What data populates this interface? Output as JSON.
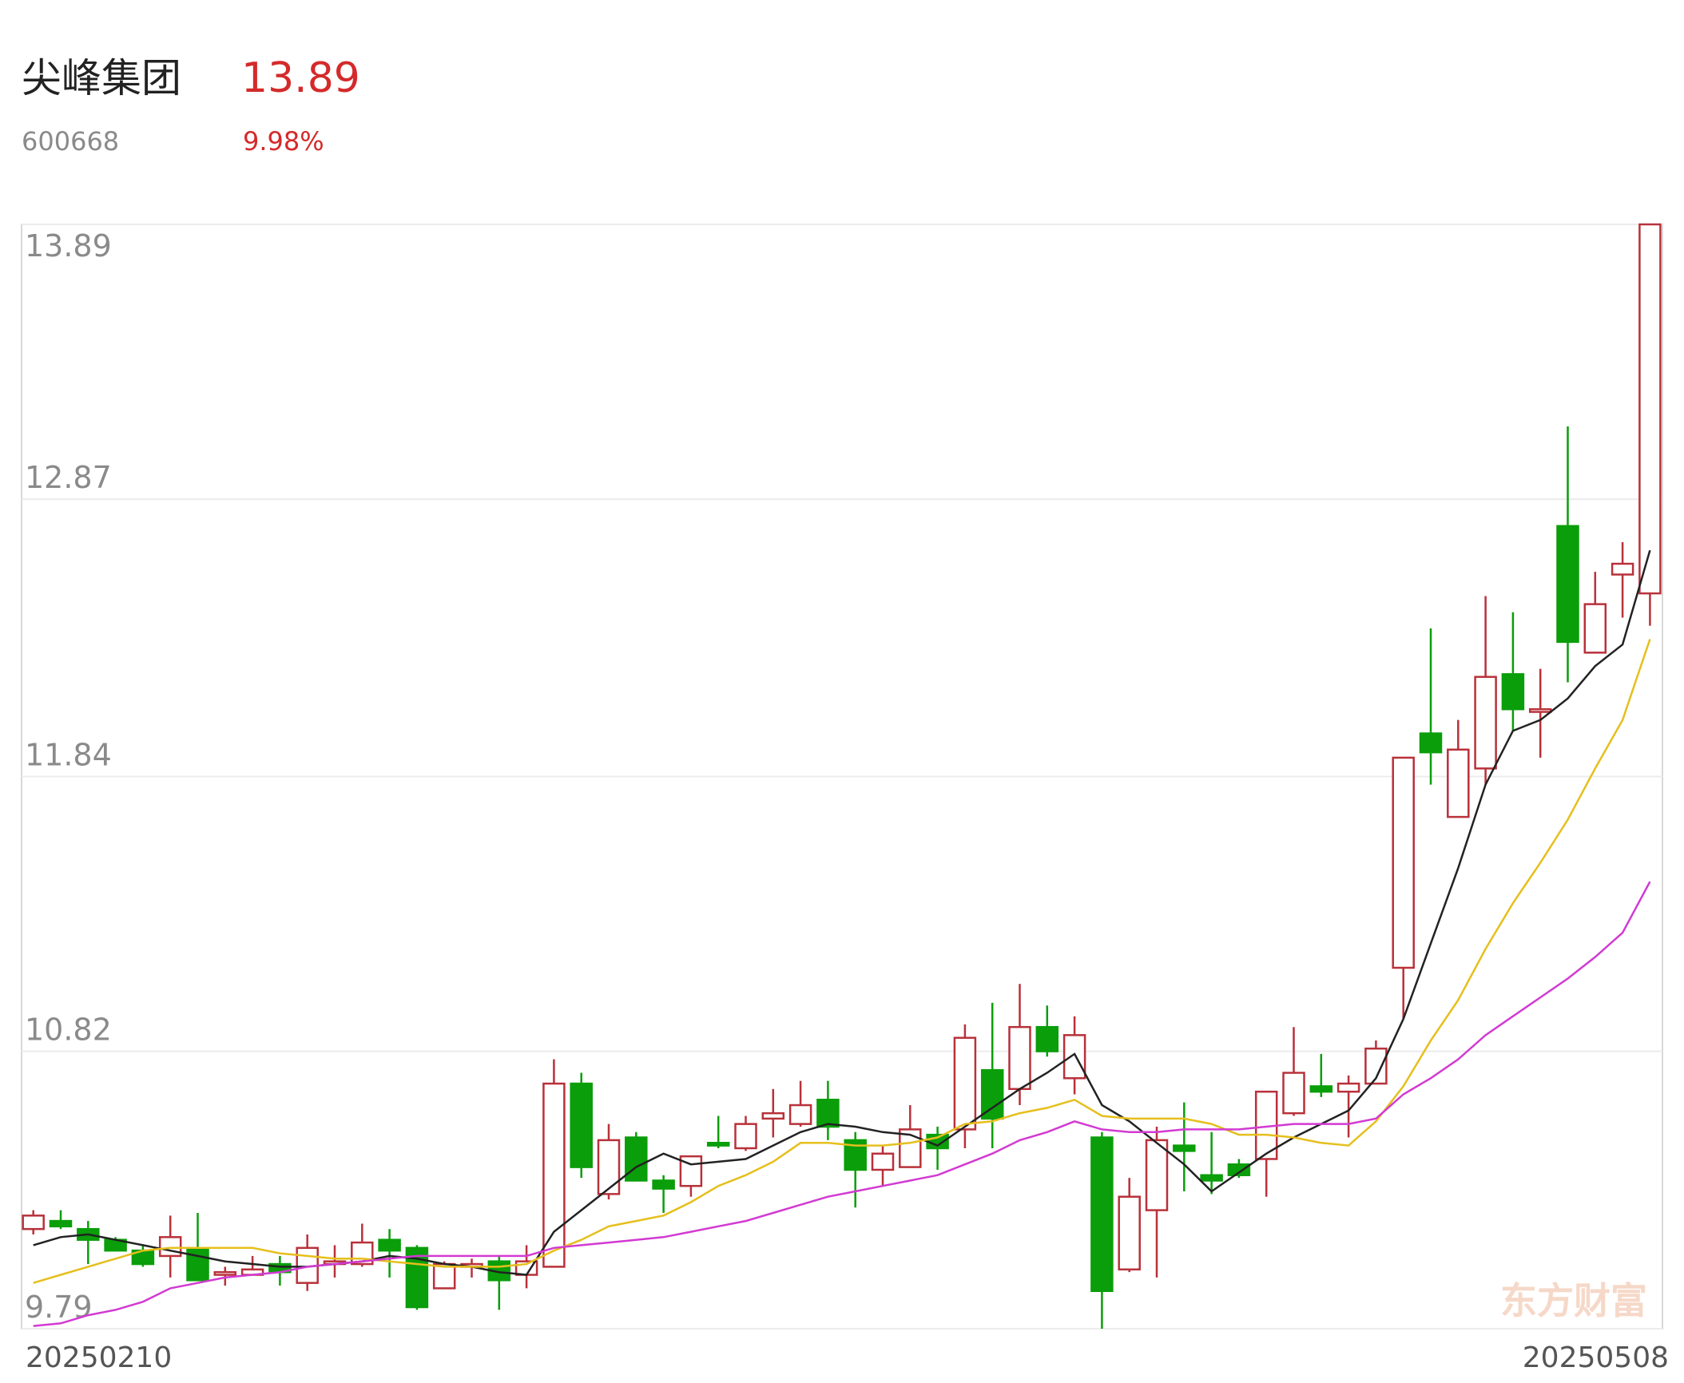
{
  "header": {
    "title": "尖峰集团",
    "price": "13.89",
    "code": "600668",
    "change": "9.98%"
  },
  "chart_data": {
    "type": "candlestick",
    "categories": [
      "20250210",
      null,
      null,
      null,
      null,
      null,
      null,
      null,
      null,
      null,
      null,
      null,
      null,
      null,
      null,
      null,
      null,
      null,
      null,
      null,
      null,
      null,
      null,
      null,
      null,
      null,
      null,
      null,
      null,
      null,
      null,
      null,
      null,
      null,
      null,
      null,
      null,
      null,
      null,
      null,
      null,
      null,
      null,
      null,
      null,
      null,
      null,
      null,
      null,
      null,
      null,
      null,
      null,
      null,
      null,
      null,
      null,
      null,
      null,
      "20250508"
    ],
    "open": [
      10.16,
      10.19,
      10.16,
      10.12,
      10.08,
      10.06,
      10.09,
      9.99,
      9.99,
      10.03,
      9.96,
      10.03,
      10.03,
      10.12,
      10.09,
      9.94,
      10.02,
      10.04,
      9.99,
      10.02,
      10.7,
      10.29,
      10.5,
      10.34,
      10.32,
      10.48,
      10.46,
      10.57,
      10.55,
      10.64,
      10.49,
      10.38,
      10.39,
      10.51,
      10.53,
      10.75,
      10.68,
      10.91,
      10.72,
      10.5,
      10.01,
      10.23,
      10.47,
      10.36,
      10.4,
      10.42,
      10.59,
      10.69,
      10.67,
      10.7,
      11.13,
      12.0,
      11.69,
      11.87,
      12.22,
      12.08,
      12.77,
      12.3,
      12.59,
      12.52
    ],
    "high": [
      10.23,
      10.23,
      10.19,
      10.13,
      10.1,
      10.21,
      10.22,
      10.02,
      10.06,
      10.06,
      10.14,
      10.1,
      10.18,
      10.16,
      10.1,
      10.04,
      10.05,
      10.06,
      10.1,
      10.79,
      10.74,
      10.55,
      10.52,
      10.36,
      10.43,
      10.58,
      10.58,
      10.68,
      10.71,
      10.71,
      10.52,
      10.47,
      10.62,
      10.54,
      10.92,
      11.0,
      11.07,
      10.99,
      10.95,
      10.52,
      10.35,
      10.54,
      10.63,
      10.52,
      10.42,
      10.67,
      10.91,
      10.81,
      10.73,
      10.86,
      11.91,
      12.39,
      12.05,
      12.51,
      12.45,
      12.24,
      13.14,
      12.6,
      12.71,
      13.89
    ],
    "low": [
      10.14,
      10.16,
      10.03,
      10.08,
      10.02,
      9.98,
      9.97,
      9.95,
      9.99,
      9.95,
      9.93,
      9.98,
      10.02,
      9.98,
      9.86,
      9.94,
      9.98,
      9.86,
      9.94,
      10.02,
      10.35,
      10.27,
      10.34,
      10.22,
      10.28,
      10.46,
      10.45,
      10.5,
      10.54,
      10.49,
      10.24,
      10.32,
      10.39,
      10.38,
      10.46,
      10.46,
      10.62,
      10.8,
      10.66,
      9.79,
      10.0,
      9.98,
      10.3,
      10.29,
      10.35,
      10.28,
      10.58,
      10.65,
      10.5,
      10.7,
      10.94,
      11.81,
      11.69,
      11.81,
      12.01,
      11.91,
      12.19,
      12.3,
      12.43,
      12.4
    ],
    "close": [
      10.21,
      10.17,
      10.12,
      10.08,
      10.03,
      10.13,
      9.97,
      10.0,
      10.01,
      10.0,
      10.09,
      10.04,
      10.11,
      10.08,
      9.87,
      10.03,
      10.03,
      9.97,
      10.04,
      10.7,
      10.39,
      10.49,
      10.34,
      10.31,
      10.43,
      10.47,
      10.55,
      10.59,
      10.62,
      10.54,
      10.38,
      10.44,
      10.53,
      10.46,
      10.87,
      10.57,
      10.91,
      10.82,
      10.88,
      9.93,
      10.28,
      10.49,
      10.45,
      10.34,
      10.36,
      10.67,
      10.74,
      10.67,
      10.7,
      10.83,
      11.91,
      11.93,
      11.94,
      12.21,
      12.09,
      12.09,
      12.34,
      12.48,
      12.63,
      13.89
    ],
    "up_color": "#b8313a",
    "down_color": "#0a9e0a",
    "series": [
      {
        "color": "#222222",
        "values": [
          10.1,
          10.13,
          10.14,
          10.12,
          10.1,
          10.08,
          10.06,
          10.04,
          10.03,
          10.02,
          10.02,
          10.03,
          10.04,
          10.06,
          10.05,
          10.03,
          10.02,
          10.0,
          9.99,
          10.15,
          10.23,
          10.31,
          10.39,
          10.44,
          10.4,
          10.41,
          10.42,
          10.47,
          10.52,
          10.55,
          10.54,
          10.52,
          10.51,
          10.47,
          10.54,
          10.61,
          10.68,
          10.74,
          10.81,
          10.62,
          10.56,
          10.48,
          10.4,
          10.3,
          10.37,
          10.44,
          10.5,
          10.55,
          10.6,
          10.72,
          10.94,
          11.22,
          11.5,
          11.81,
          12.01,
          12.05,
          12.13,
          12.25,
          12.33,
          12.68
        ]
      },
      {
        "color": "#e6bf1c",
        "values": [
          9.96,
          9.99,
          10.02,
          10.05,
          10.08,
          10.09,
          10.09,
          10.09,
          10.09,
          10.07,
          10.06,
          10.05,
          10.05,
          10.04,
          10.03,
          10.02,
          10.02,
          10.02,
          10.03,
          10.08,
          10.12,
          10.17,
          10.19,
          10.21,
          10.26,
          10.32,
          10.36,
          10.41,
          10.48,
          10.48,
          10.47,
          10.47,
          10.48,
          10.5,
          10.55,
          10.56,
          10.59,
          10.61,
          10.64,
          10.58,
          10.57,
          10.57,
          10.57,
          10.55,
          10.51,
          10.51,
          10.5,
          10.48,
          10.47,
          10.56,
          10.69,
          10.86,
          11.01,
          11.2,
          11.37,
          11.52,
          11.68,
          11.87,
          12.05,
          12.35
        ]
      },
      {
        "color": "#d23ad2",
        "values": [
          9.8,
          9.81,
          9.84,
          9.86,
          9.89,
          9.94,
          9.96,
          9.98,
          9.99,
          10.0,
          10.02,
          10.03,
          10.04,
          10.05,
          10.06,
          10.06,
          10.06,
          10.06,
          10.06,
          10.09,
          10.1,
          10.11,
          10.12,
          10.13,
          10.15,
          10.17,
          10.19,
          10.22,
          10.25,
          10.28,
          10.3,
          10.32,
          10.34,
          10.36,
          10.4,
          10.44,
          10.49,
          10.52,
          10.56,
          10.53,
          10.52,
          10.52,
          10.53,
          10.53,
          10.53,
          10.54,
          10.55,
          10.55,
          10.55,
          10.57,
          10.66,
          10.72,
          10.79,
          10.88,
          10.95,
          11.02,
          11.09,
          11.17,
          11.26,
          11.45
        ]
      }
    ],
    "ylim": [
      9.79,
      13.89
    ],
    "yticks": [
      13.89,
      12.87,
      11.84,
      10.82,
      9.79
    ],
    "grid": true,
    "watermark": "东方财富"
  }
}
